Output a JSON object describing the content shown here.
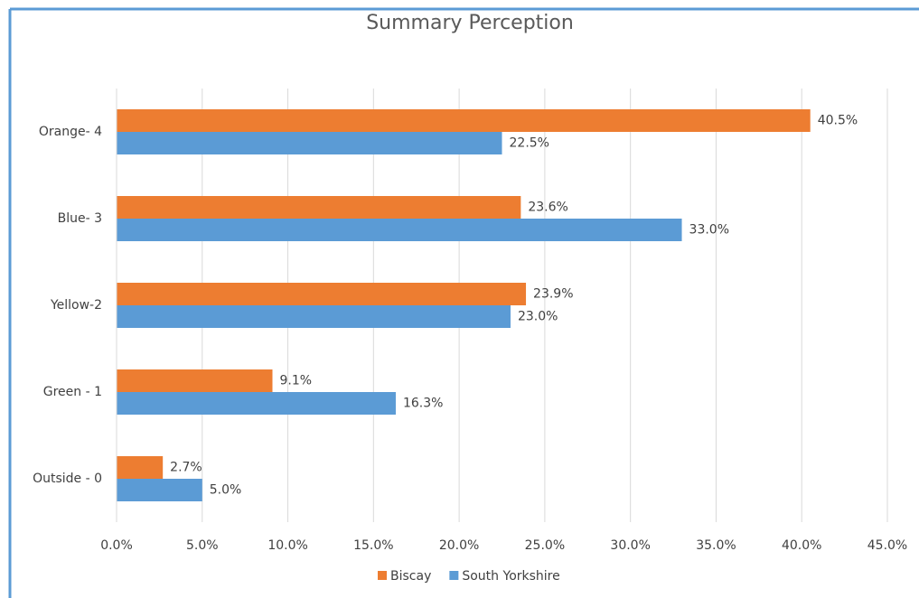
{
  "chart_data": {
    "type": "bar",
    "orientation": "horizontal",
    "title": "Summary Perception",
    "categories": [
      "Orange- 4",
      "Blue- 3",
      "Yellow-2",
      "Green - 1",
      "Outside - 0"
    ],
    "series": [
      {
        "name": "Biscay",
        "color": "#ed7d31",
        "values": [
          40.5,
          23.6,
          23.9,
          9.1,
          2.7
        ],
        "value_labels": [
          "40.5%",
          "23.6%",
          "23.9%",
          "9.1%",
          "2.7%"
        ]
      },
      {
        "name": "South Yorkshire",
        "color": "#5b9bd5",
        "values": [
          22.5,
          33.0,
          23.0,
          16.3,
          5.0
        ],
        "value_labels": [
          "22.5%",
          "33.0%",
          "23.0%",
          "16.3%",
          "5.0%"
        ]
      }
    ],
    "xlim": [
      0,
      45
    ],
    "xticks": [
      {
        "value": 0,
        "label": "0.0%"
      },
      {
        "value": 5,
        "label": "5.0%"
      },
      {
        "value": 10,
        "label": "10.0%"
      },
      {
        "value": 15,
        "label": "15.0%"
      },
      {
        "value": 20,
        "label": "20.0%"
      },
      {
        "value": 25,
        "label": "25.0%"
      },
      {
        "value": 30,
        "label": "30.0%"
      },
      {
        "value": 35,
        "label": "35.0%"
      },
      {
        "value": 40,
        "label": "40.0%"
      },
      {
        "value": 45,
        "label": "45.0%"
      }
    ],
    "grid": true,
    "legend": "bottom"
  }
}
